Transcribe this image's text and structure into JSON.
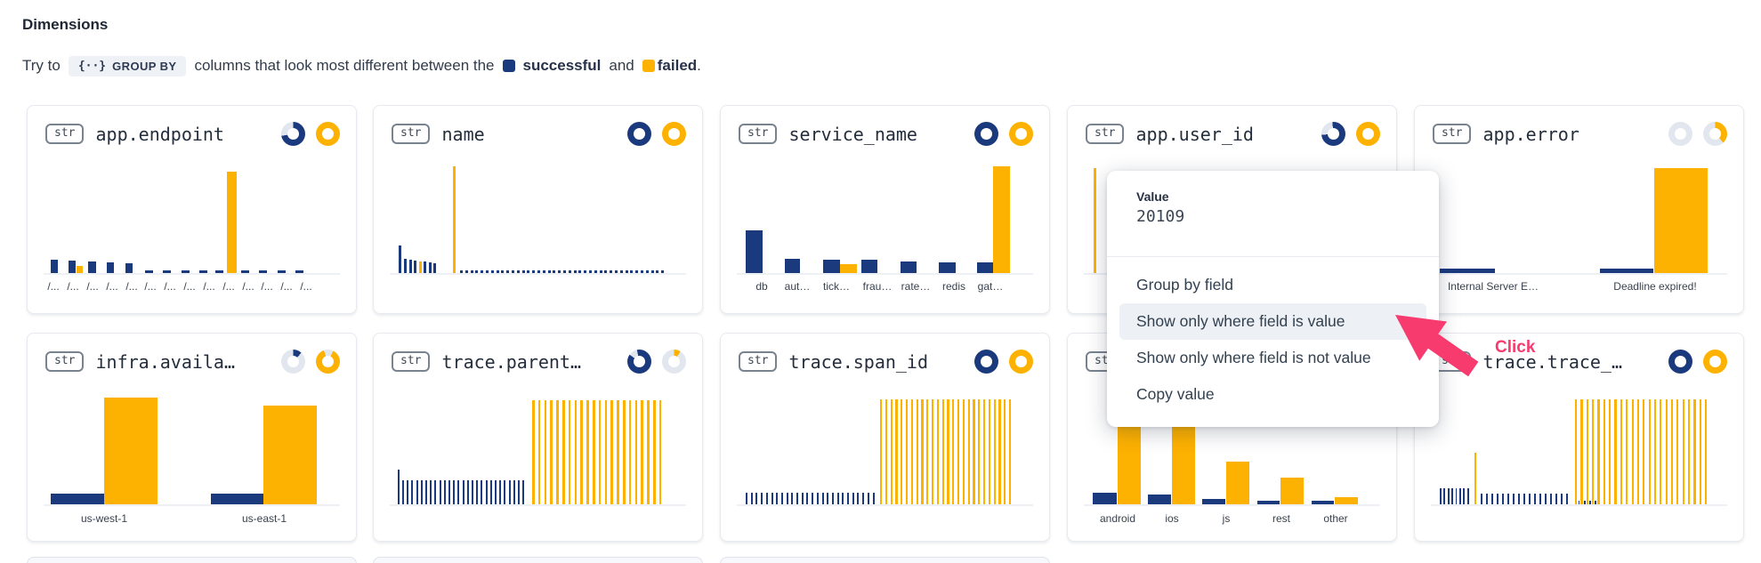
{
  "header": {
    "title": "Dimensions",
    "try_prefix": "Try to",
    "chip_icon": "{··}",
    "chip_label": "GROUP BY",
    "mid_text": "columns that look most different between the",
    "series_a": "successful",
    "and_text": "and",
    "series_b": "failed",
    "period": "."
  },
  "colors": {
    "blue": "#1B3A7E",
    "orange": "#FDB100",
    "gray": "#E2E6EE",
    "pink": "#F73B6F"
  },
  "popup": {
    "value_label": "Value",
    "value": "20109",
    "items": [
      {
        "label": "Group by field",
        "highlighted": false
      },
      {
        "label": "Show only where field is value",
        "highlighted": true
      },
      {
        "label": "Show only where field is not value",
        "highlighted": false
      },
      {
        "label": "Copy value",
        "highlighted": false
      }
    ]
  },
  "annotation": {
    "label": "Click"
  },
  "cards": [
    {
      "badge": "str",
      "title": "app.endpoint",
      "col": 0,
      "row": 0,
      "icons": [
        {
          "color": "blue",
          "gap": 0.28,
          "start": -100
        },
        {
          "color": "orange",
          "gap": 0,
          "start": 0
        }
      ],
      "bars": [
        [
          26,
          8,
          15,
          "b"
        ],
        [
          46,
          8,
          14,
          "b"
        ],
        [
          55,
          7,
          8,
          "o"
        ],
        [
          68,
          9,
          13,
          "b"
        ],
        [
          89,
          8,
          12,
          "b"
        ],
        [
          110,
          8,
          11,
          "b"
        ],
        [
          132,
          9,
          3,
          "b"
        ],
        [
          152,
          9,
          3,
          "b"
        ],
        [
          173,
          9,
          3,
          "b"
        ],
        [
          193,
          9,
          3,
          "b"
        ],
        [
          211,
          9,
          3,
          "b"
        ],
        [
          224,
          11,
          114,
          "o"
        ],
        [
          240,
          9,
          3,
          "b"
        ],
        [
          260,
          9,
          3,
          "b"
        ],
        [
          281,
          9,
          3,
          "b"
        ],
        [
          301,
          9,
          3,
          "b"
        ]
      ],
      "labels": [
        [
          29,
          "/..."
        ],
        [
          51,
          "/..."
        ],
        [
          73,
          "/..."
        ],
        [
          95,
          "/..."
        ],
        [
          117,
          "/..."
        ],
        [
          138,
          "/..."
        ],
        [
          160,
          "/..."
        ],
        [
          182,
          "/..."
        ],
        [
          204,
          "/..."
        ],
        [
          226,
          "/..."
        ],
        [
          248,
          "/..."
        ],
        [
          269,
          "/..."
        ],
        [
          291,
          "/..."
        ],
        [
          313,
          "/..."
        ]
      ]
    },
    {
      "badge": "str",
      "title": "name",
      "col": 1,
      "row": 0,
      "icons": [
        {
          "color": "blue",
          "gap": 0,
          "start": 0
        },
        {
          "color": "orange",
          "gap": 0,
          "start": 0
        }
      ],
      "bars": [
        [
          28,
          3,
          31,
          "b"
        ],
        [
          34,
          3,
          16,
          "b"
        ],
        [
          40,
          3,
          15,
          "b"
        ],
        [
          45,
          3,
          14,
          "b"
        ],
        [
          51,
          3,
          13,
          "o"
        ],
        [
          56,
          3,
          13,
          "b"
        ],
        [
          62,
          3,
          12,
          "b"
        ],
        [
          67,
          3,
          11,
          "b"
        ],
        [
          89,
          3,
          120,
          "o"
        ],
        {
          "run": [
            97,
            5.8,
            40,
            3,
            3,
            "b"
          ]
        }
      ],
      "labels": []
    },
    {
      "badge": "str",
      "title": "service_name",
      "col": 2,
      "row": 0,
      "icons": [
        {
          "color": "blue",
          "gap": 0,
          "start": 0
        },
        {
          "color": "orange",
          "gap": 0,
          "start": 0
        }
      ],
      "bars": [
        [
          28,
          19,
          48,
          "b"
        ],
        [
          72,
          17,
          16,
          "b"
        ],
        [
          115,
          19,
          15,
          "b"
        ],
        [
          134,
          19,
          10,
          "o"
        ],
        [
          158,
          18,
          15,
          "b"
        ],
        [
          202,
          18,
          13,
          "b"
        ],
        [
          245,
          19,
          12,
          "b"
        ],
        [
          288,
          18,
          12,
          "b"
        ],
        [
          306,
          19,
          120,
          "o"
        ]
      ],
      "labels": [
        [
          46,
          "db"
        ],
        [
          86,
          "aut…"
        ],
        [
          130,
          "tick…"
        ],
        [
          176,
          "frau…"
        ],
        [
          219,
          "rate…"
        ],
        [
          262,
          "redis"
        ],
        [
          303,
          "gat…"
        ]
      ]
    },
    {
      "badge": "str",
      "title": "app.user_id",
      "col": 3,
      "row": 0,
      "icons": [
        {
          "color": "blue",
          "gap": 0.25,
          "start": -95
        },
        {
          "color": "orange",
          "gap": 0,
          "start": 0
        }
      ],
      "bars": [
        [
          29,
          3,
          118,
          "o"
        ]
      ],
      "labels": []
    },
    {
      "badge": "str",
      "title": "app.error",
      "col": 4,
      "row": 0,
      "icons": [
        {
          "color": "gray",
          "gap": 0,
          "start": 0
        },
        {
          "color": "orange",
          "gap": 0.62,
          "start": 137
        }
      ],
      "bars": [
        [
          28,
          62,
          5,
          "b"
        ],
        [
          208,
          60,
          5,
          "b"
        ],
        [
          269,
          60,
          118,
          "o"
        ]
      ],
      "labels": [
        [
          88,
          "Internal Server E…"
        ],
        [
          270,
          "Deadline expired!"
        ]
      ]
    },
    {
      "badge": "str",
      "title": "infra.availa…",
      "col": 0,
      "row": 1,
      "icons": [
        {
          "color": "blue",
          "gap": 0.88,
          "start": 43
        },
        {
          "color": "orange",
          "gap": 0.13,
          "start": -20
        }
      ],
      "bars": [
        [
          26,
          60,
          12,
          "b"
        ],
        [
          86,
          60,
          120,
          "o"
        ],
        [
          206,
          59,
          12,
          "b"
        ],
        [
          265,
          60,
          111,
          "o"
        ]
      ],
      "labels": [
        [
          86,
          "us-west-1"
        ],
        [
          266,
          "us-east-1"
        ]
      ]
    },
    {
      "badge": "str",
      "title": "trace.parent…",
      "col": 1,
      "row": 1,
      "icons": [
        {
          "color": "blue",
          "gap": 0.12,
          "start": -55
        },
        {
          "color": "orange",
          "gap": 0.91,
          "start": 32
        }
      ],
      "bars": [
        [
          27,
          2,
          39,
          "b"
        ],
        {
          "run": [
            32,
            5.2,
            27,
            2,
            27,
            "b"
          ]
        },
        {
          "run": [
            178,
            6.8,
            22,
            2.5,
            117,
            "o"
          ]
        }
      ],
      "labels": []
    },
    {
      "badge": "str",
      "title": "trace.span_id",
      "col": 2,
      "row": 1,
      "icons": [
        {
          "color": "blue",
          "gap": 0,
          "start": 0
        },
        {
          "color": "orange",
          "gap": 0,
          "start": 0
        }
      ],
      "bars": [
        {
          "run": [
            28,
            5.7,
            26,
            2,
            13,
            "b"
          ]
        },
        {
          "run": [
            179,
            5.8,
            26,
            2.3,
            118,
            "o"
          ]
        }
      ],
      "labels": []
    },
    {
      "badge": "str",
      "title": "",
      "col": 3,
      "row": 1,
      "icons": [
        {
          "color": "blue",
          "gap": 0,
          "start": 0
        },
        {
          "color": "orange",
          "gap": 0,
          "start": 0
        }
      ],
      "bars": [
        [
          28,
          27,
          13,
          "b"
        ],
        [
          56,
          26,
          120,
          "o"
        ],
        [
          90,
          26,
          11,
          "b"
        ],
        [
          117,
          26,
          120,
          "o"
        ],
        [
          151,
          26,
          6,
          "b"
        ],
        [
          178,
          26,
          48,
          "o"
        ],
        [
          213,
          25,
          4,
          "b"
        ],
        [
          239,
          26,
          30,
          "o"
        ],
        [
          274,
          25,
          4,
          "b"
        ],
        [
          300,
          26,
          8,
          "o"
        ]
      ],
      "labels": [
        [
          56,
          "android"
        ],
        [
          117,
          "ios"
        ],
        [
          178,
          "js"
        ],
        [
          240,
          "rest"
        ],
        [
          301,
          "other"
        ]
      ]
    },
    {
      "badge": "str",
      "title": "trace.trace_…",
      "col": 4,
      "row": 1,
      "icons": [
        {
          "color": "blue",
          "gap": 0,
          "start": 0
        },
        {
          "color": "orange",
          "gap": 0,
          "start": 0
        }
      ],
      "bars": [
        {
          "run": [
            28,
            4.4,
            8,
            1.8,
            18,
            "b"
          ]
        },
        [
          67,
          2,
          58,
          "o"
        ],
        {
          "run": [
            74,
            6,
            17,
            1.8,
            12,
            "b"
          ]
        },
        {
          "run": [
            183.5,
            6.3,
            4,
            1.8,
            4,
            "b"
          ]
        },
        {
          "run": [
            180,
            6.35,
            24,
            2.2,
            118,
            "o"
          ]
        }
      ],
      "labels": []
    }
  ]
}
